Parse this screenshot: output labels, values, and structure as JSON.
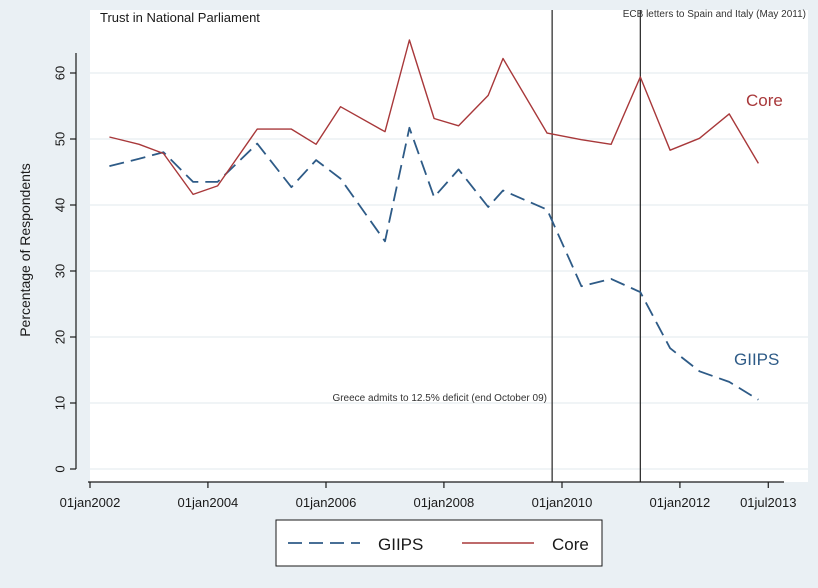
{
  "chart_data": {
    "type": "line",
    "title": "Trust in National Parliament",
    "ylabel": "Percentage of Respondents",
    "xlabel": "",
    "ylim": [
      0,
      67
    ],
    "xlim": [
      "2002-01-01",
      "2013-07-01"
    ],
    "yticks": [
      "0",
      "10",
      "20",
      "30",
      "40",
      "50",
      "60"
    ],
    "xticks": [
      {
        "label": "01jan2002",
        "date": "2002-01-01"
      },
      {
        "label": "01jan2004",
        "date": "2004-01-01"
      },
      {
        "label": "01jan2006",
        "date": "2006-01-01"
      },
      {
        "label": "01jan2008",
        "date": "2008-01-01"
      },
      {
        "label": "01jan2010",
        "date": "2010-01-01"
      },
      {
        "label": "01jan2012",
        "date": "2012-01-01"
      },
      {
        "label": "01jul2013",
        "date": "2013-07-01"
      }
    ],
    "grid": "horizontal",
    "legend": "bottom",
    "series": [
      {
        "name": "GIIPS",
        "color": "#2e5b87",
        "style": "dashed",
        "label": "GIIPS",
        "points": [
          {
            "x": "2002-05-01",
            "y": 45.9
          },
          {
            "x": "2002-11-01",
            "y": 47.0
          },
          {
            "x": "2003-04-01",
            "y": 48.0
          },
          {
            "x": "2003-10-01",
            "y": 43.5
          },
          {
            "x": "2004-03-01",
            "y": 43.5
          },
          {
            "x": "2004-11-01",
            "y": 49.3
          },
          {
            "x": "2005-06-01",
            "y": 42.7
          },
          {
            "x": "2005-11-01",
            "y": 46.8
          },
          {
            "x": "2006-04-01",
            "y": 44.0
          },
          {
            "x": "2007-01-01",
            "y": 34.5
          },
          {
            "x": "2007-06-01",
            "y": 51.7
          },
          {
            "x": "2007-11-01",
            "y": 41.2
          },
          {
            "x": "2008-04-01",
            "y": 45.4
          },
          {
            "x": "2008-10-01",
            "y": 39.7
          },
          {
            "x": "2009-01-01",
            "y": 42.2
          },
          {
            "x": "2009-10-01",
            "y": 39.3
          },
          {
            "x": "2010-05-01",
            "y": 27.7
          },
          {
            "x": "2010-11-01",
            "y": 28.8
          },
          {
            "x": "2011-05-01",
            "y": 26.8
          },
          {
            "x": "2011-11-01",
            "y": 18.3
          },
          {
            "x": "2012-05-01",
            "y": 14.8
          },
          {
            "x": "2012-11-01",
            "y": 13.2
          },
          {
            "x": "2013-05-01",
            "y": 10.5
          }
        ]
      },
      {
        "name": "Core",
        "color": "#a8383a",
        "style": "solid",
        "label": "Core",
        "points": [
          {
            "x": "2002-05-01",
            "y": 50.3
          },
          {
            "x": "2002-11-01",
            "y": 49.2
          },
          {
            "x": "2003-04-01",
            "y": 47.8
          },
          {
            "x": "2003-10-01",
            "y": 41.6
          },
          {
            "x": "2004-03-01",
            "y": 42.9
          },
          {
            "x": "2004-11-01",
            "y": 51.5
          },
          {
            "x": "2005-06-01",
            "y": 51.5
          },
          {
            "x": "2005-11-01",
            "y": 49.2
          },
          {
            "x": "2006-04-01",
            "y": 54.9
          },
          {
            "x": "2007-01-01",
            "y": 51.1
          },
          {
            "x": "2007-06-01",
            "y": 65.0
          },
          {
            "x": "2007-11-01",
            "y": 53.1
          },
          {
            "x": "2008-04-01",
            "y": 52.0
          },
          {
            "x": "2008-10-01",
            "y": 56.6
          },
          {
            "x": "2009-01-01",
            "y": 62.2
          },
          {
            "x": "2009-10-01",
            "y": 50.9
          },
          {
            "x": "2010-05-01",
            "y": 49.9
          },
          {
            "x": "2010-11-01",
            "y": 49.2
          },
          {
            "x": "2011-05-01",
            "y": 59.4
          },
          {
            "x": "2011-11-01",
            "y": 48.3
          },
          {
            "x": "2012-05-01",
            "y": 50.1
          },
          {
            "x": "2012-11-01",
            "y": 53.8
          },
          {
            "x": "2013-05-01",
            "y": 46.3
          }
        ]
      }
    ],
    "vlines": [
      {
        "x": "2009-11-01",
        "annotation": "Greece admits to 12.5% deficit (end October 09)"
      },
      {
        "x": "2011-05-01",
        "annotation": "ECB letters to Spain and Italy (May 2011)"
      }
    ],
    "colors": {
      "background": "#eaf0f4",
      "plot_background": "#ffffff",
      "grid": "#e2e8ec",
      "axis": "#1a1a1a"
    }
  }
}
